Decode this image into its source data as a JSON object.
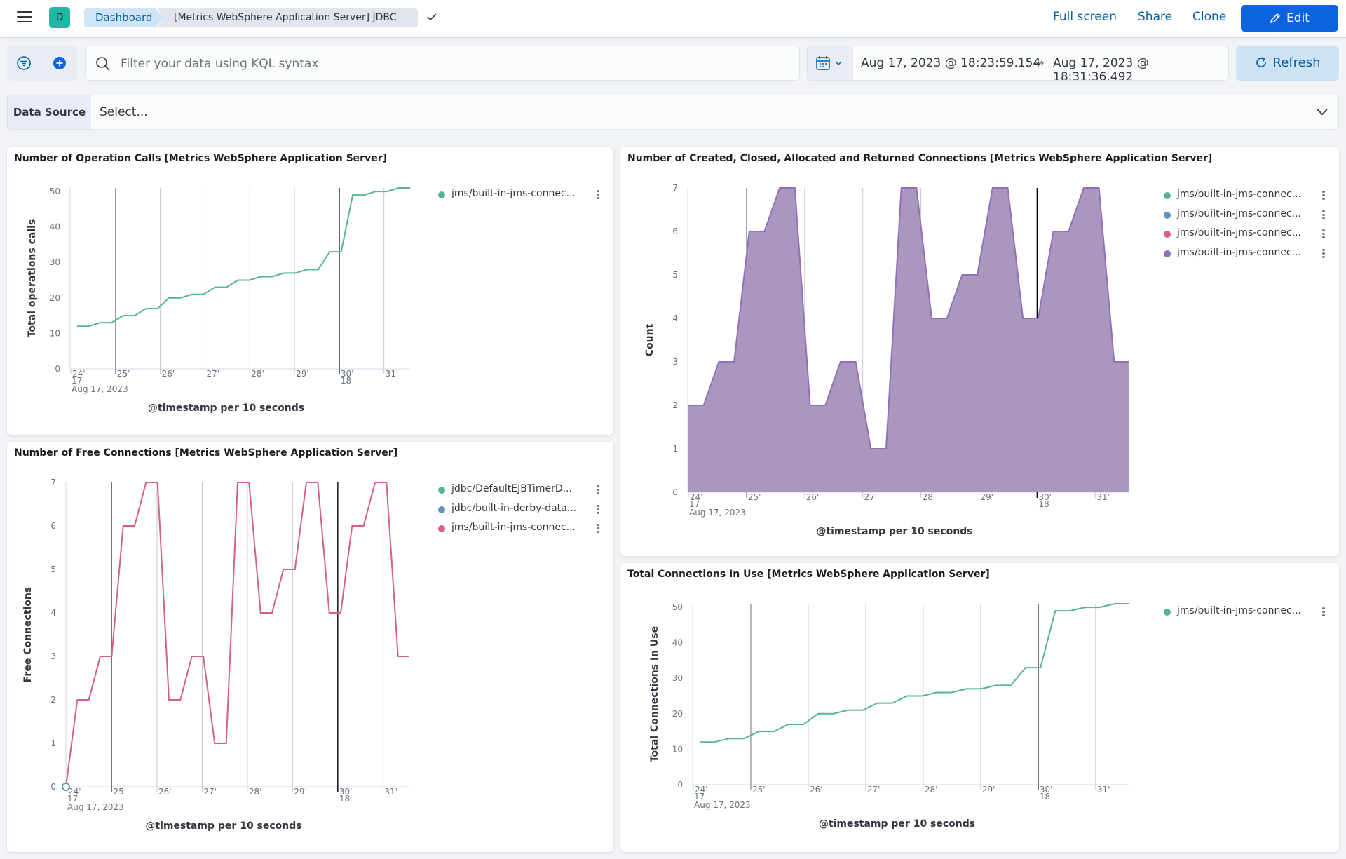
{
  "header": {
    "logo_letter": "D",
    "breadcrumb_root": "Dashboard",
    "breadcrumb_current": "[Metrics WebSphere Application Server] JDBC",
    "full_screen": "Full screen",
    "share": "Share",
    "clone": "Clone",
    "edit": "Edit"
  },
  "query": {
    "placeholder": "Filter your data using KQL syntax",
    "date_start": "Aug 17, 2023 @ 18:23:59.154",
    "date_arrow": "→",
    "date_end": "Aug 17, 2023 @ 18:31:36.492",
    "refresh": "Refresh"
  },
  "data_source": {
    "label": "Data Source",
    "value": "Select..."
  },
  "colors": {
    "green": "#54b399",
    "blue": "#6092c0",
    "pink": "#d36086",
    "purple": "#9170b8",
    "purple_fill": "#a997bf"
  },
  "panels": [
    {
      "title": "Number of Operation Calls [Metrics WebSphere Application Server]",
      "legend": [
        {
          "label": "jms/built-in-jms-connec...",
          "color": "#54b399"
        }
      ],
      "chart_data": {
        "type": "line",
        "xlabel": "@timestamp per 10 seconds",
        "ylabel": "Total operations calls",
        "x_ticks": [
          "24'",
          "25'",
          "26'",
          "27'",
          "28'",
          "29'",
          "30'",
          "31'"
        ],
        "x_sub_17": "17",
        "x_sub_18": "18",
        "x_date": "Aug 17, 2023",
        "y_ticks": [
          0,
          10,
          20,
          30,
          40,
          50
        ],
        "ylim": [
          0,
          51
        ],
        "series": [
          {
            "color": "#54b399",
            "values": [
              12,
              12,
              13,
              13,
              15,
              15,
              17,
              17,
              20,
              20,
              21,
              21,
              23,
              23,
              25,
              25,
              26,
              26,
              27,
              27,
              28,
              28,
              33,
              33,
              49,
              49,
              50,
              50,
              51,
              51
            ]
          }
        ]
      }
    },
    {
      "title": "Number of Created, Closed, Allocated and Returned Connections [Metrics WebSphere Application Server]",
      "legend": [
        {
          "label": "jms/built-in-jms-connec...",
          "color": "#54b399"
        },
        {
          "label": "jms/built-in-jms-connec...",
          "color": "#6092c0"
        },
        {
          "label": "jms/built-in-jms-connec...",
          "color": "#d36086"
        },
        {
          "label": "jms/built-in-jms-connec...",
          "color": "#9170b8"
        }
      ],
      "chart_data": {
        "type": "area",
        "xlabel": "@timestamp per 10 seconds",
        "ylabel": "Count",
        "x_ticks": [
          "24'",
          "25'",
          "26'",
          "27'",
          "28'",
          "29'",
          "30'",
          "31'"
        ],
        "x_sub_17": "17",
        "x_sub_18": "18",
        "x_date": "Aug 17, 2023",
        "y_ticks": [
          0,
          1,
          2,
          3,
          4,
          5,
          6,
          7
        ],
        "ylim": [
          0,
          7
        ],
        "series": [
          {
            "color": "#9170b8",
            "fill": "#a997bf",
            "values": [
              2,
              2,
              3,
              3,
              6,
              6,
              7,
              7,
              2,
              2,
              3,
              3,
              1,
              1,
              7,
              7,
              4,
              4,
              5,
              5,
              7,
              7,
              4,
              4,
              6,
              6,
              7,
              7,
              3,
              3
            ]
          }
        ]
      }
    },
    {
      "title": "Number of Free Connections [Metrics WebSphere Application Server]",
      "legend": [
        {
          "label": "jdbc/DefaultEJBTimerD...",
          "color": "#54b399"
        },
        {
          "label": "jdbc/built-in-derby-data...",
          "color": "#6092c0"
        },
        {
          "label": "jms/built-in-jms-connec...",
          "color": "#d36086"
        }
      ],
      "chart_data": {
        "type": "line",
        "xlabel": "@timestamp per 10 seconds",
        "ylabel": "Free Connections",
        "x_ticks": [
          "24'",
          "25'",
          "26'",
          "27'",
          "28'",
          "29'",
          "30'",
          "31'"
        ],
        "x_sub_17": "17",
        "x_sub_18": "18",
        "x_date": "Aug 17, 2023",
        "y_ticks": [
          0,
          1,
          2,
          3,
          4,
          5,
          6,
          7
        ],
        "ylim": [
          0,
          7
        ],
        "series": [
          {
            "color": "#d36086",
            "values": [
              0,
              2,
              2,
              3,
              3,
              6,
              6,
              7,
              7,
              2,
              2,
              3,
              3,
              1,
              1,
              7,
              7,
              4,
              4,
              5,
              5,
              7,
              7,
              4,
              4,
              6,
              6,
              7,
              7,
              3,
              3
            ]
          }
        ]
      }
    },
    {
      "title": "Total Connections In Use [Metrics WebSphere Application Server]",
      "legend": [
        {
          "label": "jms/built-in-jms-connec...",
          "color": "#54b399"
        }
      ],
      "chart_data": {
        "type": "line",
        "xlabel": "@timestamp per 10 seconds",
        "ylabel": "Total Connections In Use",
        "x_ticks": [
          "24'",
          "25'",
          "26'",
          "27'",
          "28'",
          "29'",
          "30'",
          "31'"
        ],
        "x_sub_17": "17",
        "x_sub_18": "18",
        "x_date": "Aug 17, 2023",
        "y_ticks": [
          0,
          10,
          20,
          30,
          40,
          50
        ],
        "ylim": [
          0,
          51
        ],
        "series": [
          {
            "color": "#54b399",
            "values": [
              12,
              12,
              13,
              13,
              15,
              15,
              17,
              17,
              20,
              20,
              21,
              21,
              23,
              23,
              25,
              25,
              26,
              26,
              27,
              27,
              28,
              28,
              33,
              33,
              49,
              49,
              50,
              50,
              51,
              51
            ]
          }
        ]
      }
    }
  ]
}
